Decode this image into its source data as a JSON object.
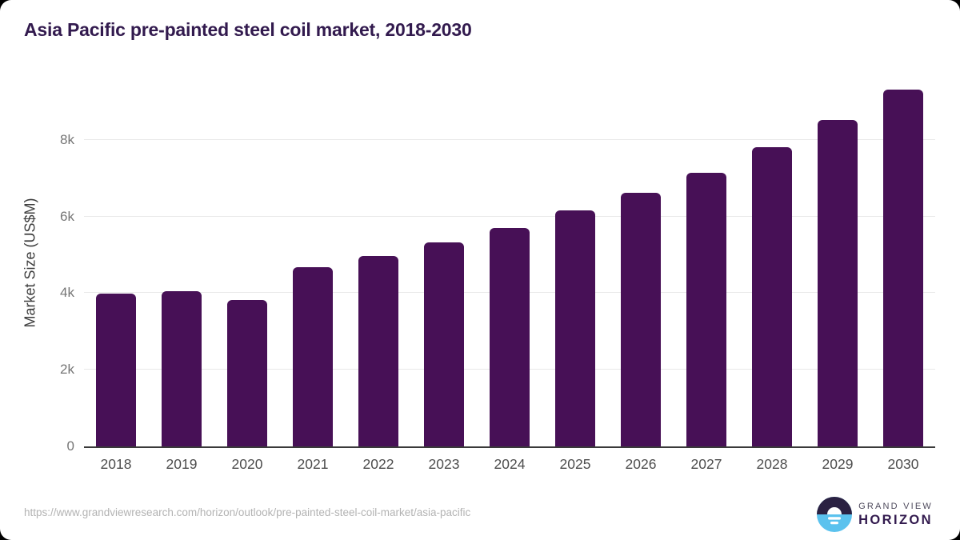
{
  "chart_data": {
    "type": "bar",
    "title": "Asia Pacific pre-painted steel coil market, 2018-2030",
    "categories": [
      "2018",
      "2019",
      "2020",
      "2021",
      "2022",
      "2023",
      "2024",
      "2025",
      "2026",
      "2027",
      "2028",
      "2029",
      "2030"
    ],
    "values": [
      3980,
      4060,
      3830,
      4670,
      4970,
      5320,
      5710,
      6150,
      6610,
      7150,
      7800,
      8520,
      9320
    ],
    "xlabel": "",
    "ylabel": "Market Size (US$M)",
    "ylim": [
      0,
      9600
    ],
    "yticks": [
      {
        "value": 0,
        "label": "0"
      },
      {
        "value": 2000,
        "label": "2k"
      },
      {
        "value": 4000,
        "label": "4k"
      },
      {
        "value": 6000,
        "label": "6k"
      },
      {
        "value": 8000,
        "label": "8k"
      }
    ],
    "gridlines_at": [
      2000,
      4000,
      6000,
      8000
    ],
    "grid": true,
    "legend_position": "none",
    "bar_color": "#471056"
  },
  "footer": {
    "source_url": "https://www.grandviewresearch.com/horizon/outlook/pre-painted-steel-coil-market/asia-pacific",
    "logo_icon": "sun-over-horizon-icon",
    "logo_line1": "GRAND VIEW",
    "logo_line2": "HORIZON"
  },
  "colors": {
    "page_bg": "#000000",
    "card_bg": "#ffffff",
    "title": "#321a4e",
    "bar": "#471056",
    "axis_label": "#3d3d3d",
    "tick_label": "#757575",
    "gridline": "#e9e9e9",
    "axis_line": "#3a3a3a",
    "url_text": "#b3b3b3",
    "logo_dark": "#2b2142",
    "logo_blue": "#5bc2ee"
  }
}
